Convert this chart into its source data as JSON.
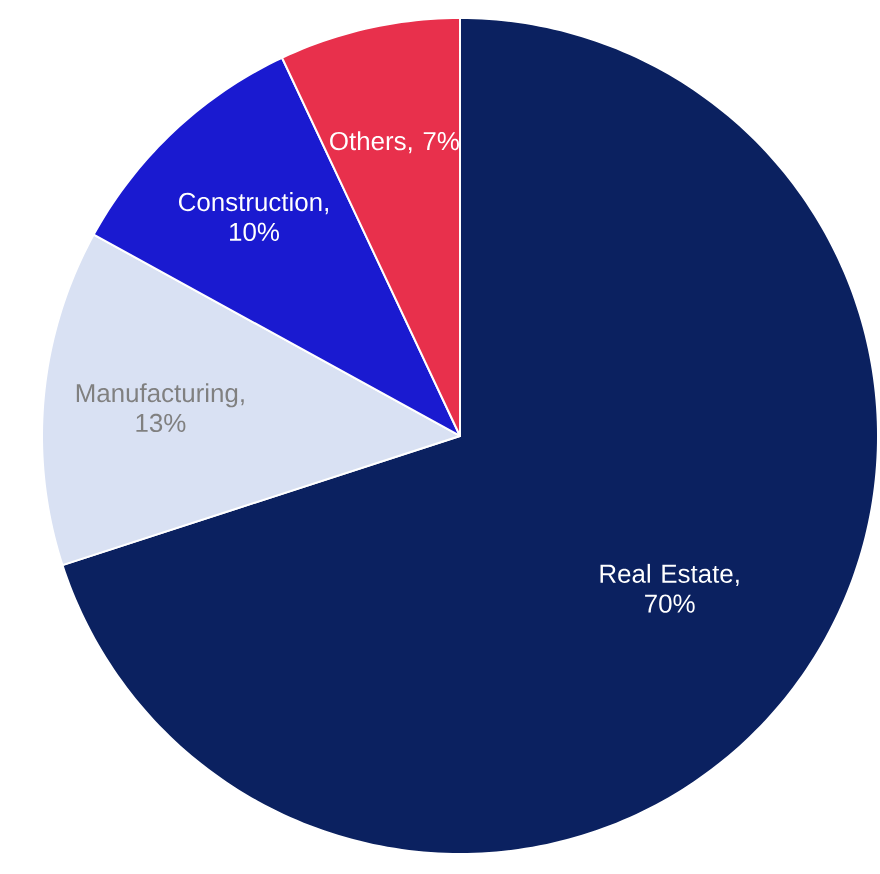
{
  "chart_data": {
    "type": "pie",
    "categories": [
      "Real Estate",
      "Manufacturing",
      "Construction",
      "Others"
    ],
    "values": [
      70,
      13,
      10,
      7
    ],
    "colors": [
      "#0b2160",
      "#d9e1f3",
      "#1a1ad0",
      "#e8304c"
    ],
    "value_labels": [
      ", 70%",
      ", 13%",
      ", 10%",
      ", 7%"
    ]
  }
}
